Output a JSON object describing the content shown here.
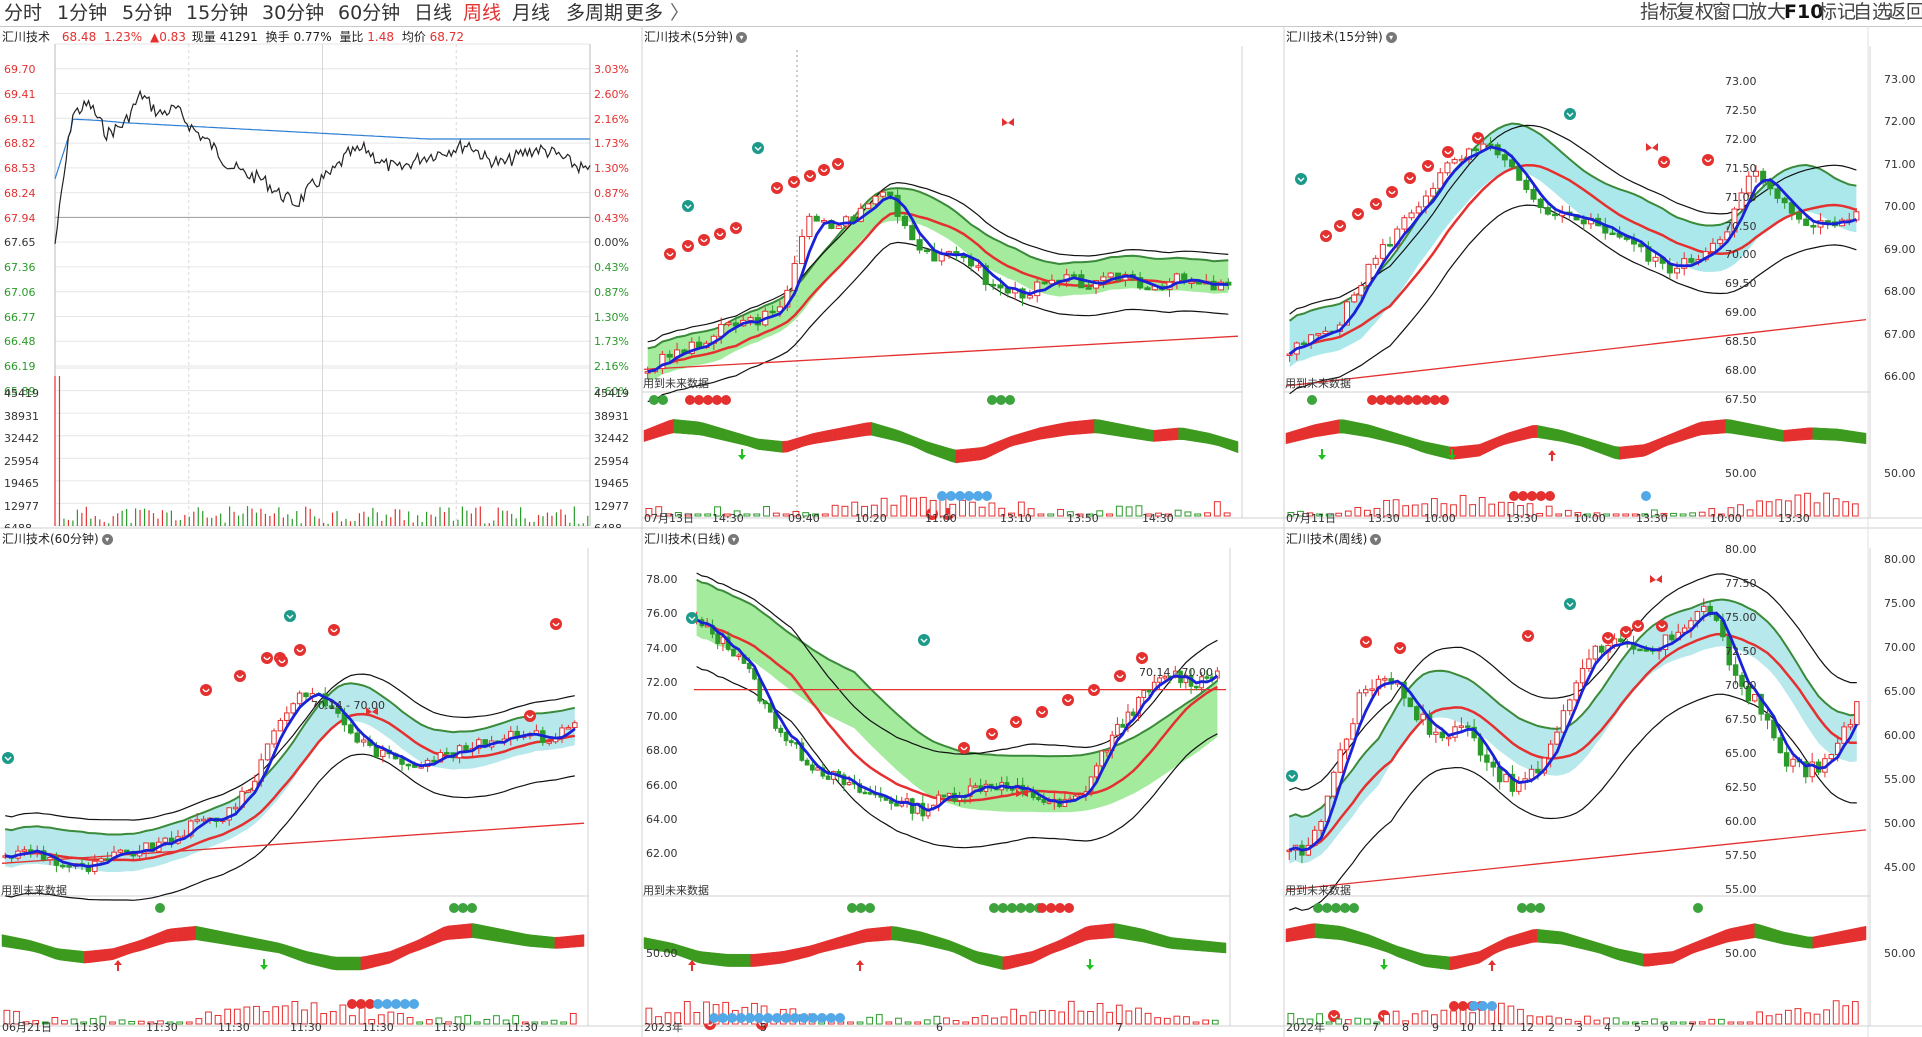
{
  "toolbar": {
    "periods": [
      "分时",
      "1分钟",
      "5分钟",
      "15分钟",
      "30分钟",
      "60分钟",
      "日线",
      "周线",
      "月线",
      "多周期",
      "更多"
    ],
    "more_glyph": "〉",
    "active_period": "周线",
    "right_tools": [
      "指标",
      "复权",
      "窗口",
      "放大",
      "F10",
      "标记",
      "自选",
      "返回"
    ]
  },
  "intraday": {
    "title": "汇川技术",
    "price": "68.48",
    "change_pct": "1.23%",
    "change": "▲0.83",
    "volume_label": "现量",
    "volume": "41291",
    "turnover_label": "换手",
    "turnover": "0.77%",
    "ratio_label": "量比",
    "ratio": "1.48",
    "avg_label": "均价",
    "avg": "68.72",
    "price_axis": [
      "69.70",
      "69.41",
      "69.11",
      "68.82",
      "68.53",
      "68.24",
      "67.94",
      "67.65",
      "67.36",
      "67.06",
      "66.77",
      "66.48",
      "66.19",
      "65.89"
    ],
    "pct_axis": [
      "3.03%",
      "2.60%",
      "2.16%",
      "1.73%",
      "1.30%",
      "0.87%",
      "0.43%",
      "0.00%",
      "0.43%",
      "0.87%",
      "1.30%",
      "1.73%",
      "2.16%",
      "2.60%"
    ],
    "vol_axis": [
      "45419",
      "38931",
      "32442",
      "25954",
      "19465",
      "12977",
      "6488"
    ]
  },
  "panels": {
    "m5": {
      "title": "汇川技术(5分钟)",
      "future": "用到未来数据",
      "x_labels": [
        "07月13日",
        "14:30",
        "09:40",
        "10:20",
        "11:00",
        "13:10",
        "13:50",
        "14:30"
      ]
    },
    "m15": {
      "title": "汇川技术(15分钟)",
      "future": "用到未来数据",
      "y_axis": [
        "73.00",
        "72.50",
        "72.00",
        "71.50",
        "71.00",
        "70.50",
        "70.00",
        "69.50",
        "69.00",
        "68.50",
        "68.00",
        "67.50"
      ],
      "macd_axis": "50.00",
      "x_labels": [
        "07月11日",
        "13:30",
        "10:00",
        "13:30",
        "10:00",
        "13:30",
        "10:00",
        "13:30"
      ]
    },
    "m15_right_axis": [
      "73.00",
      "72.00",
      "71.00",
      "70.00",
      "69.00",
      "68.00",
      "67.00",
      "66.00",
      "50.00"
    ],
    "h60": {
      "title": "汇川技术(60分钟)",
      "future": "用到未来数据",
      "range_label": "70.14 - 70.00",
      "x_labels": [
        "06月21日",
        "11:30",
        "11:30",
        "11:30",
        "11:30",
        "11:30",
        "11:30",
        "11:30"
      ]
    },
    "daily": {
      "title": "汇川技术(日线)",
      "future": "用到未来数据",
      "range_label": "70.14 - 70.00",
      "y_axis": [
        "78.00",
        "76.00",
        "74.00",
        "72.00",
        "70.00",
        "68.00",
        "66.00",
        "64.00",
        "62.00"
      ],
      "macd_axis": "50.00",
      "x_labels": [
        "2023年",
        "5",
        "6",
        "7"
      ]
    },
    "weekly": {
      "title": "汇川技术(周线)",
      "future": "用到未来数据",
      "y_axis": [
        "80.00",
        "77.50",
        "75.00",
        "72.50",
        "70.00",
        "67.50",
        "65.00",
        "62.50",
        "60.00",
        "57.50",
        "55.00"
      ],
      "macd_axis": "50.00",
      "x_labels": [
        "2022年",
        "6",
        "7",
        "8",
        "9",
        "10",
        "11",
        "12",
        "2",
        "3",
        "4",
        "5",
        "6",
        "7"
      ]
    },
    "weekly_right_axis": [
      "80.00",
      "75.00",
      "70.00",
      "65.00",
      "60.00",
      "55.00",
      "50.00",
      "45.00",
      "50.00"
    ]
  },
  "colors": {
    "up": "#e53030",
    "down": "#2a9a2a",
    "ma_blue": "#1a22d8",
    "band_green": "#7ddc7a",
    "band_cyan": "#9fe0e6"
  }
}
